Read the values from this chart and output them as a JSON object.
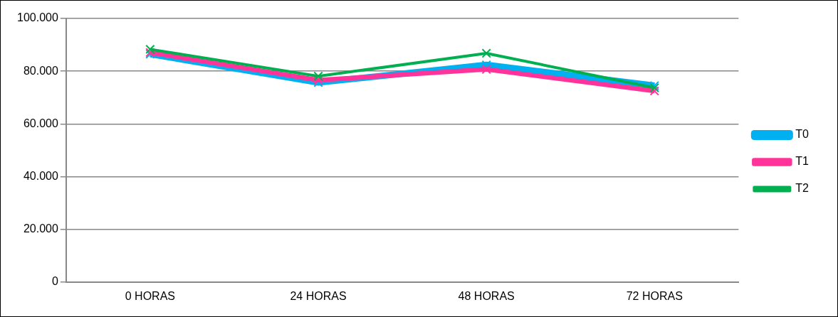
{
  "chart_data": {
    "type": "line",
    "categories": [
      "0 HORAS",
      "24 HORAS",
      "48 HORAS",
      "72 HORAS"
    ],
    "series": [
      {
        "name": "T0",
        "color": "#00b0f0",
        "values": [
          86500,
          75700,
          82400,
          74500
        ]
      },
      {
        "name": "T1",
        "color": "#ff3399",
        "values": [
          87100,
          76600,
          80700,
          72500
        ]
      },
      {
        "name": "T2",
        "color": "#00b050",
        "values": [
          88300,
          78100,
          86800,
          73700
        ]
      }
    ],
    "ylim": [
      0,
      100000
    ],
    "yticks": [
      0,
      {
        "value": 20000,
        "label": "20.000"
      },
      {
        "value": 40000,
        "label": "40.000"
      },
      {
        "value": 60000,
        "label": "60.000"
      },
      {
        "value": 80000,
        "label": "80.000"
      },
      {
        "value": 100000,
        "label": "100.000"
      }
    ],
    "grid": "y",
    "legend": "right",
    "marker": "cross",
    "line_style": "solid"
  }
}
